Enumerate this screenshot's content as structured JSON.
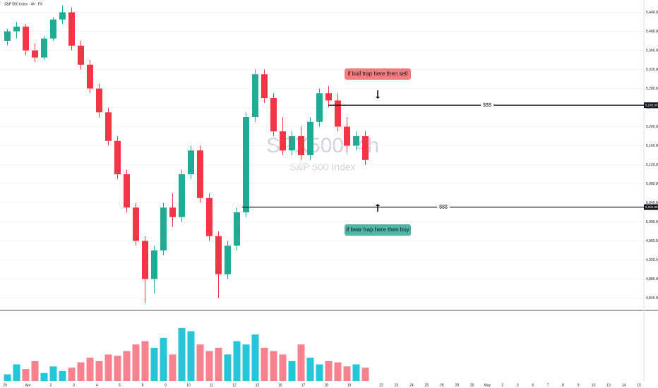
{
  "chart_data": {
    "type": "candlestick",
    "title": "S&P 500 Index · 4h · FX",
    "watermark": "SPX500, 4h",
    "subtitle": "S&P 500 Index",
    "open": [
      5380,
      5400,
      5410,
      5360,
      5345,
      5385,
      5425,
      5440,
      5370,
      5330,
      5280,
      5230,
      5170,
      5100,
      5030,
      4960,
      4880,
      4940,
      5030,
      5010,
      5100,
      5150,
      5050,
      4970,
      4890,
      4950,
      5020,
      5220,
      5310,
      5260,
      5190,
      5150,
      5180,
      5140,
      5210,
      5270,
      5255,
      5200,
      5160,
      5180
    ],
    "high": [
      5405,
      5420,
      5415,
      5375,
      5390,
      5430,
      5455,
      5450,
      5380,
      5340,
      5290,
      5240,
      5180,
      5110,
      5040,
      4970,
      4950,
      5040,
      5060,
      5110,
      5160,
      5160,
      5060,
      4980,
      4960,
      5030,
      5230,
      5320,
      5320,
      5270,
      5220,
      5190,
      5200,
      5220,
      5280,
      5285,
      5270,
      5220,
      5190,
      5190
    ],
    "low": [
      5370,
      5385,
      5350,
      5335,
      5340,
      5380,
      5415,
      5360,
      5320,
      5270,
      5220,
      5160,
      5090,
      5020,
      4950,
      4830,
      4850,
      4930,
      4990,
      5000,
      5090,
      5040,
      4960,
      4840,
      4880,
      4940,
      5010,
      5210,
      5250,
      5180,
      5140,
      5140,
      5130,
      5130,
      5200,
      5240,
      5190,
      5150,
      5150,
      5120
    ],
    "close": [
      5400,
      5410,
      5360,
      5345,
      5385,
      5425,
      5440,
      5370,
      5330,
      5280,
      5230,
      5170,
      5100,
      5030,
      4960,
      4880,
      4940,
      5030,
      5010,
      5100,
      5150,
      5050,
      4970,
      4890,
      4950,
      5020,
      5220,
      5310,
      5260,
      5190,
      5150,
      5180,
      5140,
      5210,
      5270,
      5255,
      5200,
      5160,
      5180,
      5130
    ],
    "up_color": "#22ab94",
    "down_color": "#f23645",
    "ylim": [
      4820,
      5460
    ],
    "yticks": [
      {
        "value": 5440,
        "label": "5,440.00"
      },
      {
        "value": 5400,
        "label": "5,400.00"
      },
      {
        "value": 5360,
        "label": "5,360.00"
      },
      {
        "value": 5320,
        "label": "5,320.00"
      },
      {
        "value": 5280,
        "label": "5,280.00"
      },
      {
        "value": 5240,
        "label": "5,240.00"
      },
      {
        "value": 5200,
        "label": "5,200.00"
      },
      {
        "value": 5160,
        "label": "5,160.00"
      },
      {
        "value": 5120,
        "label": "5,120.00"
      },
      {
        "value": 5080,
        "label": "5,080.00"
      },
      {
        "value": 5040,
        "label": "5,040.00"
      },
      {
        "value": 5000,
        "label": "5,000.00"
      },
      {
        "value": 4960,
        "label": "4,960.00"
      },
      {
        "value": 4920,
        "label": "4,920.00"
      },
      {
        "value": 4880,
        "label": "4,880.00"
      },
      {
        "value": 4840,
        "label": "4,840.00"
      }
    ],
    "x_labels": [
      "29",
      "Apr",
      "2",
      "3",
      "4",
      "5",
      "8",
      "9",
      "10",
      "11",
      "12",
      "15",
      "16",
      "17",
      "18",
      "19",
      "22",
      "23",
      "24",
      "25",
      "26",
      "29",
      "30",
      "May",
      "2",
      "3",
      "6",
      "7",
      "8",
      "9",
      "10",
      "13",
      "14",
      "15"
    ],
    "volume": {
      "values": [
        10,
        25,
        18,
        30,
        12,
        22,
        15,
        20,
        28,
        35,
        30,
        40,
        38,
        45,
        55,
        60,
        50,
        65,
        40,
        80,
        75,
        55,
        45,
        50,
        40,
        60,
        55,
        70,
        50,
        45,
        40,
        30,
        55,
        35,
        25,
        30,
        28,
        22,
        25,
        20
      ],
      "up_color": "#26c6da",
      "down_color": "#f7828f",
      "ylim": [
        0,
        100
      ]
    },
    "levels": [
      {
        "value": 5245,
        "label": "$$$",
        "value_label": "5,245.00"
      },
      {
        "value": 5031,
        "label": "$$$",
        "value_label": "5,031.00"
      }
    ],
    "annotations": [
      {
        "text": "if bull trap here then sell",
        "color": "#f77c80"
      },
      {
        "text": "if bear trap here then buy",
        "color": "#4db6a4"
      }
    ]
  }
}
